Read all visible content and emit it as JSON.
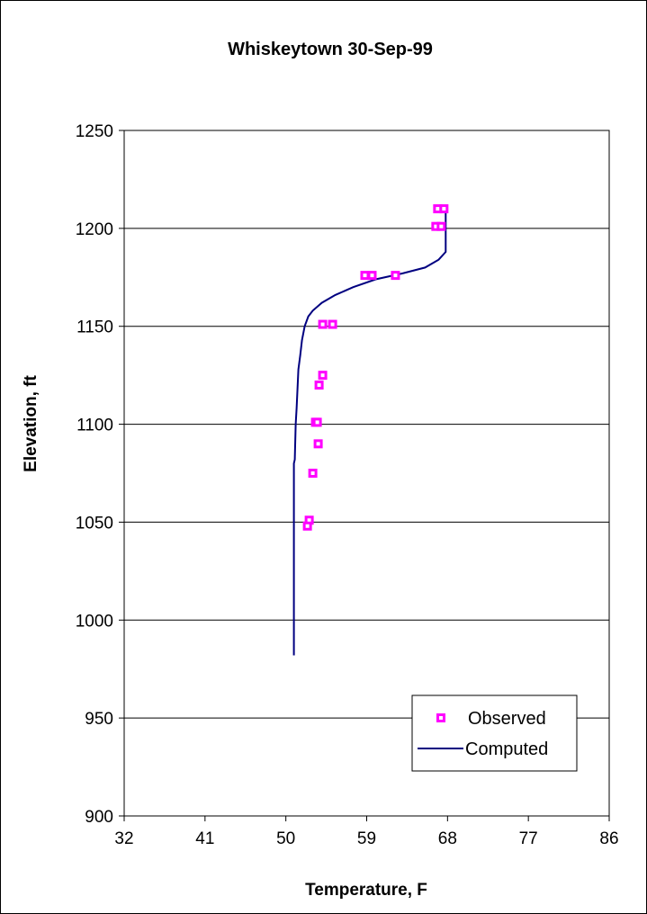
{
  "chart_data": {
    "type": "scatter",
    "title": "Whiskeytown 30-Sep-99",
    "xlabel": "Temperature, F",
    "ylabel": "Elevation, ft",
    "xlim": [
      32,
      86
    ],
    "ylim": [
      900,
      1250
    ],
    "x_ticks": [
      32,
      41,
      50,
      59,
      68,
      77,
      86
    ],
    "y_ticks": [
      900,
      950,
      1000,
      1050,
      1100,
      1150,
      1200,
      1250
    ],
    "grid": "horizontal",
    "legend_position": "bottom-right",
    "series": [
      {
        "name": "Observed",
        "kind": "scatter",
        "marker": "square",
        "color": "#ff00ff",
        "x": [
          66.9,
          67.6,
          66.7,
          67.3,
          58.8,
          59.6,
          62.2,
          54.1,
          55.2,
          54.1,
          53.7,
          53.3,
          53.5,
          53.6,
          53.0,
          52.6,
          52.4
        ],
        "y": [
          1210,
          1210,
          1201,
          1201,
          1176,
          1176,
          1176,
          1151,
          1151,
          1125,
          1120,
          1101,
          1101,
          1090,
          1075,
          1051,
          1048
        ]
      },
      {
        "name": "Computed",
        "kind": "line",
        "color": "#000080",
        "x": [
          50.9,
          50.9,
          51.0,
          51.1,
          51.2,
          51.3,
          51.4,
          51.6,
          51.8,
          52.1,
          52.5,
          53.0,
          54.0,
          55.5,
          57.5,
          60.0,
          63.0,
          65.5,
          67.0,
          67.8,
          67.8
        ],
        "y": [
          982,
          1080,
          1082,
          1100,
          1108,
          1118,
          1128,
          1135,
          1143,
          1150,
          1155,
          1158,
          1162,
          1166,
          1170,
          1174,
          1177,
          1180,
          1184,
          1188,
          1210
        ]
      }
    ]
  }
}
